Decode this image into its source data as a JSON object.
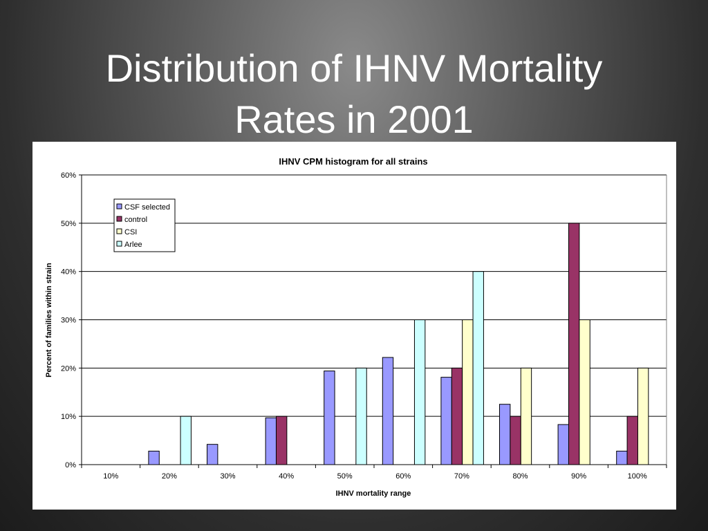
{
  "slide": {
    "title_line1": "Distribution of IHNV Mortality",
    "title_line2": "Rates in 2001"
  },
  "chart_data": {
    "type": "bar",
    "title": "IHNV CPM histogram for all strains",
    "xlabel": "IHNV mortality range",
    "ylabel": "Percent of families within strain",
    "categories": [
      "10%",
      "20%",
      "30%",
      "40%",
      "50%",
      "60%",
      "70%",
      "80%",
      "90%",
      "100%"
    ],
    "ylim": [
      0,
      60
    ],
    "yticks": [
      "0%",
      "10%",
      "20%",
      "30%",
      "40%",
      "50%",
      "60%"
    ],
    "grid": true,
    "legend_position": "top-left",
    "series": [
      {
        "name": "CSF selected",
        "color": "#9999ff",
        "values": [
          0,
          2.8,
          4.2,
          9.7,
          19.4,
          22.2,
          18.1,
          12.5,
          8.3,
          2.8
        ]
      },
      {
        "name": "control",
        "color": "#993366",
        "values": [
          0,
          0,
          0,
          10,
          0,
          0,
          20,
          10,
          50,
          10
        ]
      },
      {
        "name": "CSI",
        "color": "#ffffcc",
        "values": [
          0,
          0,
          0,
          0,
          0,
          0,
          30,
          20,
          30,
          20
        ]
      },
      {
        "name": "Arlee",
        "color": "#ccffff",
        "values": [
          0,
          10,
          0,
          0,
          20,
          30,
          40,
          0,
          0,
          0
        ]
      }
    ]
  }
}
